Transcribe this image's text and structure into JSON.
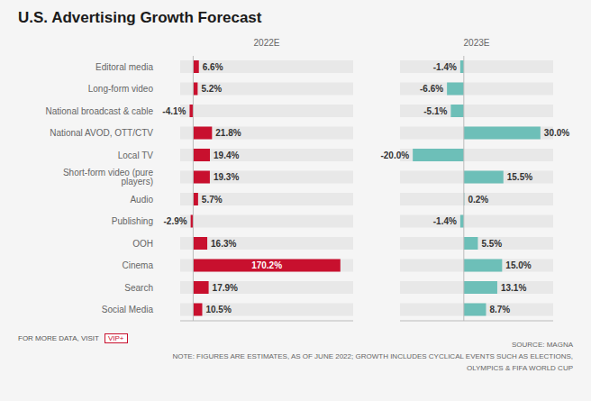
{
  "chart_data": [
    {
      "type": "bar",
      "orientation": "horizontal",
      "title": "U.S. Advertising Growth Forecast",
      "subtitle": "2022E",
      "categories": [
        "Editoral media",
        "Long-form video",
        "National broadcast & cable",
        "National AVOD, OTT/CTV",
        "Local TV",
        "Short-form video (pure players)",
        "Audio",
        "Publishing",
        "OOH",
        "Cinema",
        "Search",
        "Social Media"
      ],
      "values": [
        6.6,
        5.2,
        -4.1,
        21.8,
        19.4,
        19.3,
        5.7,
        -2.9,
        16.3,
        170.2,
        17.9,
        10.5
      ],
      "value_labels": [
        "6.6%",
        "5.2%",
        "-4.1%",
        "21.8%",
        "19.4%",
        "19.3%",
        "5.7%",
        "-2.9%",
        "16.3%",
        "170.2%",
        "17.9%",
        "10.5%"
      ],
      "color": "#c8102e",
      "xlim": [
        -15,
        185
      ],
      "data_labels": true,
      "tick_labels": "y",
      "grid": false,
      "annotations": [
        "FOR MORE DATA, VISIT",
        "VIP+",
        "SOURCE: MAGNA",
        "NOTE: FIGURES ARE ESTIMATES, AS OF JUNE 2022; GROWTH INCLUDES CYCLICAL EVENTS SUCH AS ELECTIONS,",
        "OLYMPICS & FIFA WORLD CUP"
      ]
    },
    {
      "type": "bar",
      "orientation": "horizontal",
      "subtitle": "2023E",
      "categories": [
        "Editoral media",
        "Long-form video",
        "National broadcast & cable",
        "National AVOD, OTT/CTV",
        "Local TV",
        "Short-form video (pure players)",
        "Audio",
        "Publishing",
        "OOH",
        "Cinema",
        "Search",
        "Social Media"
      ],
      "values": [
        -1.4,
        -6.6,
        -5.1,
        30.0,
        -20.0,
        15.5,
        0.2,
        -1.4,
        5.5,
        15.0,
        13.1,
        8.7
      ],
      "value_labels": [
        "-1.4%",
        "-6.6%",
        "-5.1%",
        "30.0%",
        "-20.0%",
        "15.5%",
        "0.2%",
        "-1.4%",
        "5.5%",
        "15.0%",
        "13.1%",
        "8.7%"
      ],
      "color": "#6dbfb8",
      "xlim": [
        -25,
        35
      ],
      "data_labels": true,
      "tick_labels": false,
      "grid": false
    }
  ]
}
